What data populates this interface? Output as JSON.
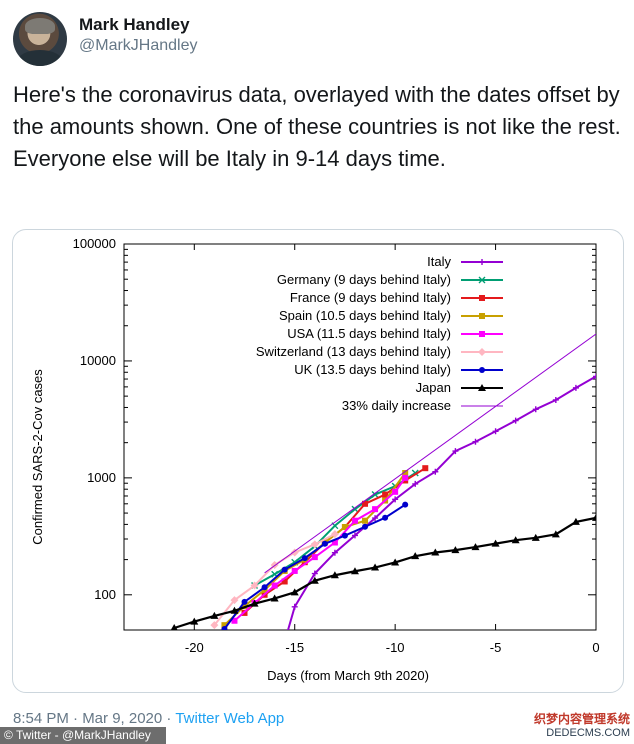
{
  "tweet": {
    "author_name": "Mark Handley",
    "author_handle": "@MarkJHandley",
    "text": "Here's the coronavirus data, overlayed with the dates offset by the amounts shown.  One of these countries is not like the rest.  Everyone else will be Italy in 9-14 days time.",
    "timestamp": "8:54 PM · Mar 9, 2020 · ",
    "source_app": "Twitter Web App"
  },
  "credit": "© Twitter - @MarkJHandley",
  "watermark": {
    "line1": "织梦内容管理系统",
    "line2": "DEDECMS.COM"
  },
  "chart_data": {
    "type": "line",
    "title": "",
    "xlabel": "Days (from March 9th 2020)",
    "ylabel": "Confirmed SARS-2-Cov cases",
    "xlim": [
      -23.5,
      0
    ],
    "ylim": [
      50,
      100000
    ],
    "yscale": "log",
    "grid": false,
    "legend_position": "top-right",
    "x_ticks": [
      -20,
      -15,
      -10,
      -5,
      0
    ],
    "x_tick_labels": [
      "-20",
      "-15",
      "-10",
      "-5",
      "0"
    ],
    "y_ticks": [
      100,
      1000,
      10000,
      100000
    ],
    "y_tick_labels": [
      "100",
      "1000",
      "10000",
      "100000"
    ],
    "series": [
      {
        "name": "Italy",
        "color": "#9400d3",
        "marker": "plus",
        "x": [
          -16,
          -15,
          -14,
          -13,
          -12,
          -11,
          -10,
          -9,
          -8,
          -7,
          -6,
          -5,
          -4,
          -3,
          -2,
          -1,
          0
        ],
        "y": [
          20,
          79,
          152,
          229,
          322,
          453,
          655,
          888,
          1128,
          1694,
          2036,
          2502,
          3089,
          3858,
          4636,
          5883,
          7375
        ]
      },
      {
        "name": "Germany (9 days behind Italy)",
        "color": "#009e73",
        "marker": "x",
        "x": [
          -17,
          -16,
          -15,
          -14,
          -13,
          -12,
          -11,
          -10,
          -9
        ],
        "y": [
          120,
          150,
          190,
          260,
          390,
          540,
          720,
          850,
          1100
        ]
      },
      {
        "name": "France (9 days behind Italy)",
        "color": "#e41a1c",
        "marker": "square",
        "x": [
          -17.5,
          -16.5,
          -15.5,
          -14.5,
          -13.5,
          -12.5,
          -11.5,
          -10.5,
          -9.5,
          -8.5
        ],
        "y": [
          70,
          100,
          130,
          190,
          280,
          380,
          600,
          720,
          950,
          1210
        ]
      },
      {
        "name": "Spain (10.5 days behind Italy)",
        "color": "#c8a000",
        "marker": "square",
        "x": [
          -18.5,
          -17.5,
          -16.5,
          -15.5,
          -14.5,
          -13.5,
          -12.5,
          -11.5,
          -10.5,
          -9.5
        ],
        "y": [
          55,
          80,
          110,
          160,
          200,
          280,
          380,
          430,
          640,
          1100
        ]
      },
      {
        "name": "USA (11.5 days behind Italy)",
        "color": "#ff00ff",
        "marker": "square",
        "x": [
          -18,
          -17,
          -16,
          -15,
          -14,
          -13,
          -12,
          -11,
          -10,
          -9.5
        ],
        "y": [
          60,
          85,
          120,
          160,
          210,
          280,
          430,
          540,
          760,
          1000
        ]
      },
      {
        "name": "Switzerland (13 days behind Italy)",
        "color": "#ffb6c1",
        "marker": "diamond",
        "x": [
          -19,
          -18,
          -17,
          -16,
          -15,
          -14,
          -13
        ],
        "y": [
          55,
          90,
          120,
          180,
          230,
          270,
          330
        ]
      },
      {
        "name": "UK (13.5 days behind Italy)",
        "color": "#0000cc",
        "marker": "circle",
        "x": [
          -18.5,
          -17.5,
          -16.5,
          -15.5,
          -14.5,
          -13.5,
          -12.5,
          -11.5,
          -10.5,
          -9.5
        ],
        "y": [
          51,
          87,
          116,
          164,
          206,
          273,
          321,
          382,
          456,
          590
        ]
      },
      {
        "name": "Japan",
        "color": "#000000",
        "marker": "triangle",
        "x": [
          -21,
          -20,
          -19,
          -18,
          -17,
          -16,
          -15,
          -14,
          -13,
          -12,
          -11,
          -10,
          -9,
          -8,
          -7,
          -6,
          -5,
          -4,
          -3,
          -2,
          -1,
          0
        ],
        "y": [
          52,
          59,
          66,
          73,
          84,
          93,
          105,
          132,
          147,
          159,
          171,
          189,
          214,
          230,
          241,
          256,
          274,
          293,
          307,
          329,
          420,
          455
        ]
      },
      {
        "name": "33% daily increase",
        "color": "#9400d3",
        "marker": "none",
        "x": [
          -16.5,
          0
        ],
        "y": [
          154,
          17000
        ]
      }
    ]
  }
}
